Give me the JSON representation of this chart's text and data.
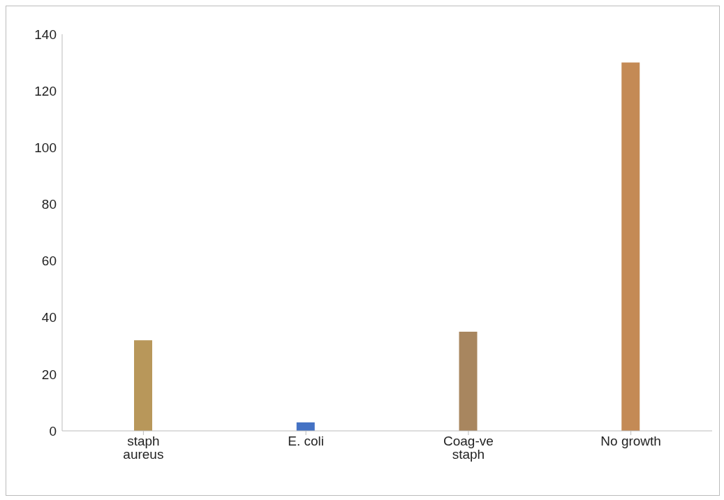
{
  "chart_data": {
    "type": "bar",
    "categories": [
      "staph aureus",
      "E. coli",
      "Coag-ve staph",
      "No growth"
    ],
    "values": [
      32,
      3,
      35,
      130
    ],
    "colors": [
      "#b8975a",
      "#4472c4",
      "#a8865f",
      "#c48a55"
    ],
    "ylim": [
      0,
      140
    ],
    "yticks": [
      0,
      20,
      40,
      60,
      80,
      100,
      120,
      140
    ],
    "grid": false,
    "legend": false
  }
}
